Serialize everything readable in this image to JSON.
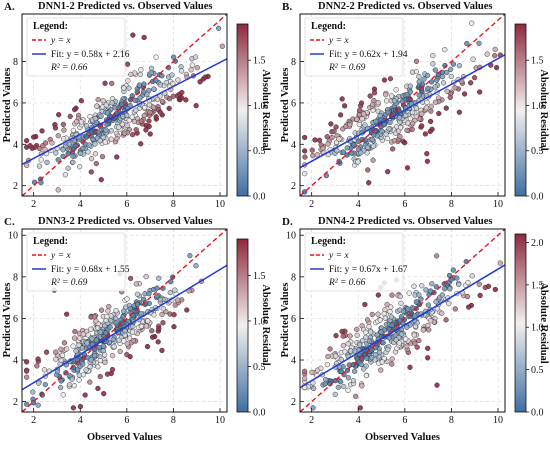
{
  "colors": {
    "points_fill_low": "#3f6fa3",
    "points_fill_mid": "#f2f0ef",
    "points_fill_high": "#8e2a3e",
    "identity_line": "#e8141c",
    "fit_line": "#1f3cd6",
    "grid": "#d9d9d9",
    "marker_edge": "#2b2b2b"
  },
  "chart_data": [
    {
      "type": "scatter",
      "panel_letter": "A.",
      "title": "DNN1-2 Predicted vs. Observed Values",
      "xlabel": "",
      "ylabel": "Predicted Values",
      "colorbar_label": "Absolute Residual",
      "xlim": [
        1.5,
        10.3
      ],
      "ylim": [
        1.5,
        10.3
      ],
      "xticks": [
        2,
        4,
        6,
        8,
        10
      ],
      "yticks": [
        2,
        4,
        6,
        8
      ],
      "colorbar_ticks": [
        0.0,
        0.5,
        1.0,
        1.5
      ],
      "colorbar_range": [
        0.0,
        1.9
      ],
      "legend_title": "Legend:",
      "legend_identity": "y = x",
      "legend_fit_line1": "Fit: y = 0.58x + 2.16",
      "legend_fit_line2": "R² = 0.66",
      "fit": {
        "slope": 0.58,
        "intercept": 2.16
      },
      "grid": true,
      "legend_position": "top-left",
      "points": {
        "n": 400,
        "seed": 11,
        "mean": 5.3,
        "sd": 1.6
      }
    },
    {
      "type": "scatter",
      "panel_letter": "B.",
      "title": "DNN2-2 Predicted vs. Observed Values",
      "xlabel": "",
      "ylabel": "Predicted Values",
      "colorbar_label": "Absolute Residual",
      "xlim": [
        1.5,
        10.3
      ],
      "ylim": [
        1.5,
        10.3
      ],
      "xticks": [
        2,
        4,
        6,
        8,
        10
      ],
      "yticks": [
        2,
        4,
        6,
        8
      ],
      "colorbar_ticks": [
        0.0,
        0.5,
        1.0,
        1.5
      ],
      "colorbar_range": [
        0.0,
        1.9
      ],
      "legend_title": "Legend:",
      "legend_identity": "y = x",
      "legend_fit_line1": "Fit: y = 0.62x + 1.94",
      "legend_fit_line2": "R² = 0.69",
      "fit": {
        "slope": 0.62,
        "intercept": 1.94
      },
      "grid": true,
      "legend_position": "top-left",
      "points": {
        "n": 400,
        "seed": 23,
        "mean": 5.3,
        "sd": 1.6
      }
    },
    {
      "type": "scatter",
      "panel_letter": "C.",
      "title": "DNN3-2 Predicted vs. Observed Values",
      "xlabel": "Observed Values",
      "ylabel": "Predicted Values",
      "colorbar_label": "Absolute Residual",
      "xlim": [
        1.5,
        10.3
      ],
      "ylim": [
        1.5,
        10.3
      ],
      "xticks": [
        2,
        4,
        6,
        8,
        10
      ],
      "yticks": [
        2,
        4,
        6,
        8,
        10
      ],
      "colorbar_ticks": [
        0.0,
        0.5,
        1.0,
        1.5
      ],
      "colorbar_range": [
        0.0,
        1.9
      ],
      "legend_title": "Legend:",
      "legend_identity": "y = x",
      "legend_fit_line1": "Fit: y = 0.68x + 1.55",
      "legend_fit_line2": "R² = 0.69",
      "fit": {
        "slope": 0.68,
        "intercept": 1.55
      },
      "grid": true,
      "legend_position": "top-left",
      "points": {
        "n": 400,
        "seed": 37,
        "mean": 5.3,
        "sd": 1.6
      }
    },
    {
      "type": "scatter",
      "panel_letter": "D.",
      "title": "DNN4-2 Predicted vs. Observed Values",
      "xlabel": "Observed Values",
      "ylabel": "Predicted Values",
      "colorbar_label": "Absolute Residual",
      "xlim": [
        1.5,
        10.3
      ],
      "ylim": [
        1.5,
        10.3
      ],
      "xticks": [
        2,
        4,
        6,
        8,
        10
      ],
      "yticks": [
        2,
        4,
        6,
        8,
        10
      ],
      "colorbar_ticks": [
        0.0,
        0.5,
        1.0,
        1.5,
        2.0
      ],
      "colorbar_range": [
        0.0,
        2.1
      ],
      "legend_title": "Legend:",
      "legend_identity": "y = x",
      "legend_fit_line1": "Fit: y = 0.67x + 1.67",
      "legend_fit_line2": "R² = 0.66",
      "fit": {
        "slope": 0.67,
        "intercept": 1.67
      },
      "grid": true,
      "legend_position": "top-left",
      "points": {
        "n": 400,
        "seed": 51,
        "mean": 5.3,
        "sd": 1.6
      }
    }
  ]
}
